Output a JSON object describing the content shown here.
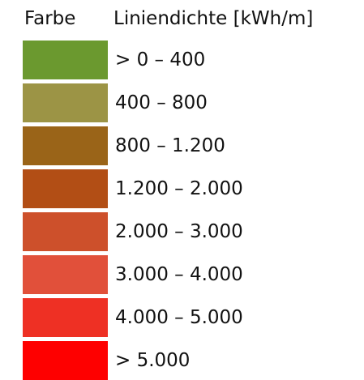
{
  "header": {
    "color_title": "Farbe",
    "value_title": "Liniendichte [kWh/m]"
  },
  "items": [
    {
      "label": "> 0 – 400",
      "color": "#6b992f"
    },
    {
      "label": "400 – 800",
      "color": "#9c9445"
    },
    {
      "label": "800 – 1.200",
      "color": "#9a6418"
    },
    {
      "label": "1.200 – 2.000",
      "color": "#b24e15"
    },
    {
      "label": "2.000 – 3.000",
      "color": "#cd502b"
    },
    {
      "label": "3.000 – 4.000",
      "color": "#e1503a"
    },
    {
      "label": "4.000 – 5.000",
      "color": "#ee3024"
    },
    {
      "label": "> 5.000",
      "color": "#fe0000"
    }
  ]
}
